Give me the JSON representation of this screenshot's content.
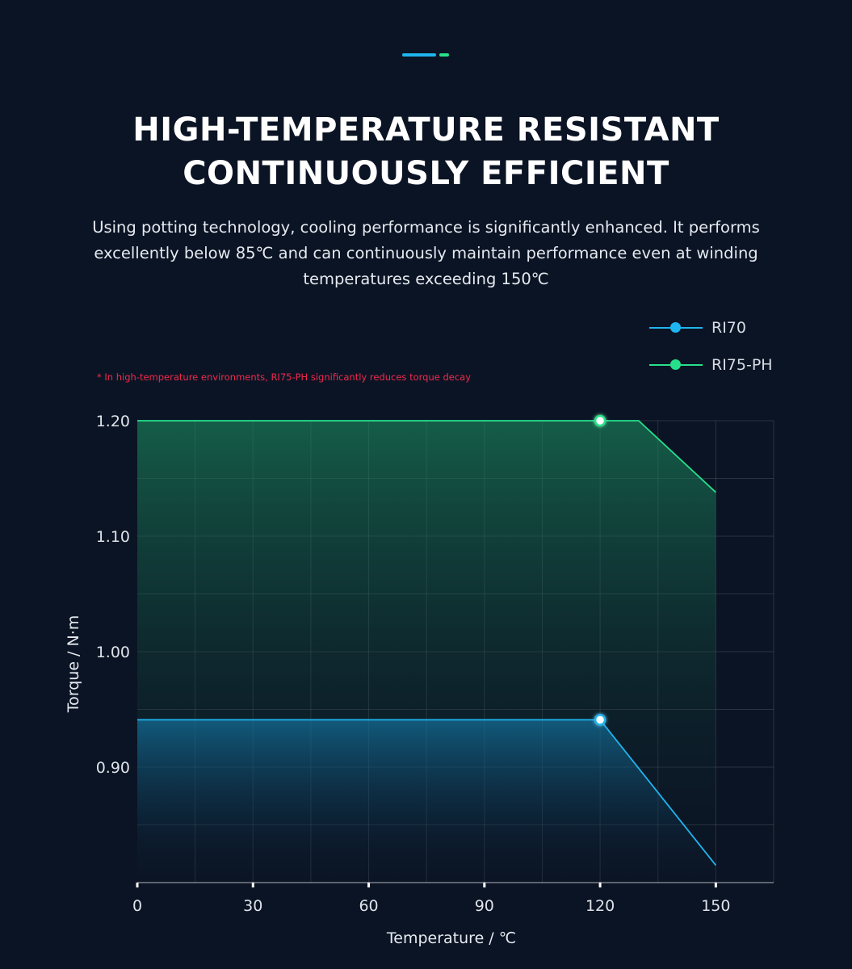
{
  "heading": {
    "line1": "HIGH-TEMPERATURE RESISTANT",
    "line2": "CONTINUOUSLY EFFICIENT"
  },
  "subtitle": "Using potting technology, cooling performance is significantly enhanced. It performs excellently below 85℃ and can continuously maintain performance even at winding temperatures exceeding 150℃",
  "note": "* In high-temperature environments, RI75-PH significantly reduces torque decay",
  "colors": {
    "accent_blue": "#1fb5ee",
    "accent_green": "#26e08c",
    "note_red": "#ef2a4e",
    "background": "#0b1424"
  },
  "chart_data": {
    "type": "area",
    "xlabel": "Temperature / ℃",
    "ylabel": "Torque / N·m",
    "x_ticks": [
      "0",
      "30",
      "60",
      "90",
      "120",
      "150"
    ],
    "y_ticks": [
      "1.20",
      "1.10",
      "1.00",
      "0.90"
    ],
    "xlim": [
      0,
      165
    ],
    "ylim": [
      0.8,
      1.2
    ],
    "grid": true,
    "legend_position": "top-right",
    "series": [
      {
        "name": "RI70",
        "color": "#1fb5ee",
        "points": [
          [
            0,
            0.941
          ],
          [
            120,
            0.941
          ],
          [
            150,
            0.815
          ]
        ],
        "marker": [
          120,
          0.941
        ]
      },
      {
        "name": "RI75-PH",
        "color": "#26e08c",
        "points": [
          [
            0,
            1.2
          ],
          [
            130,
            1.2
          ],
          [
            150,
            1.138
          ]
        ],
        "marker": [
          120,
          1.2
        ]
      }
    ]
  }
}
